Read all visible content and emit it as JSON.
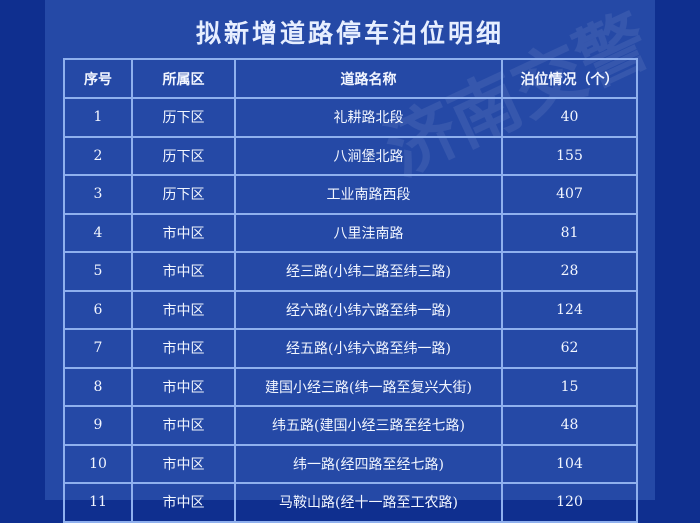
{
  "title": "拟新增道路停车泊位明细",
  "watermark": "济南交警",
  "table": {
    "headers": [
      "序号",
      "所属区",
      "道路名称",
      "泊位情况（个）"
    ],
    "rows": [
      [
        "1",
        "历下区",
        "礼耕路北段",
        "40"
      ],
      [
        "2",
        "历下区",
        "八涧堡北路",
        "155"
      ],
      [
        "3",
        "历下区",
        "工业南路西段",
        "407"
      ],
      [
        "4",
        "市中区",
        "八里洼南路",
        "81"
      ],
      [
        "5",
        "市中区",
        "经三路(小纬二路至纬三路)",
        "28"
      ],
      [
        "6",
        "市中区",
        "经六路(小纬六路至纬一路)",
        "124"
      ],
      [
        "7",
        "市中区",
        "经五路(小纬六路至纬一路)",
        "62"
      ],
      [
        "8",
        "市中区",
        "建国小经三路(纬一路至复兴大街)",
        "15"
      ],
      [
        "9",
        "市中区",
        "纬五路(建国小经三路至经七路)",
        "48"
      ],
      [
        "10",
        "市中区",
        "纬一路(经四路至经七路)",
        "104"
      ],
      [
        "11",
        "市中区",
        "马鞍山路(经十一路至工农路)",
        "120"
      ]
    ]
  }
}
